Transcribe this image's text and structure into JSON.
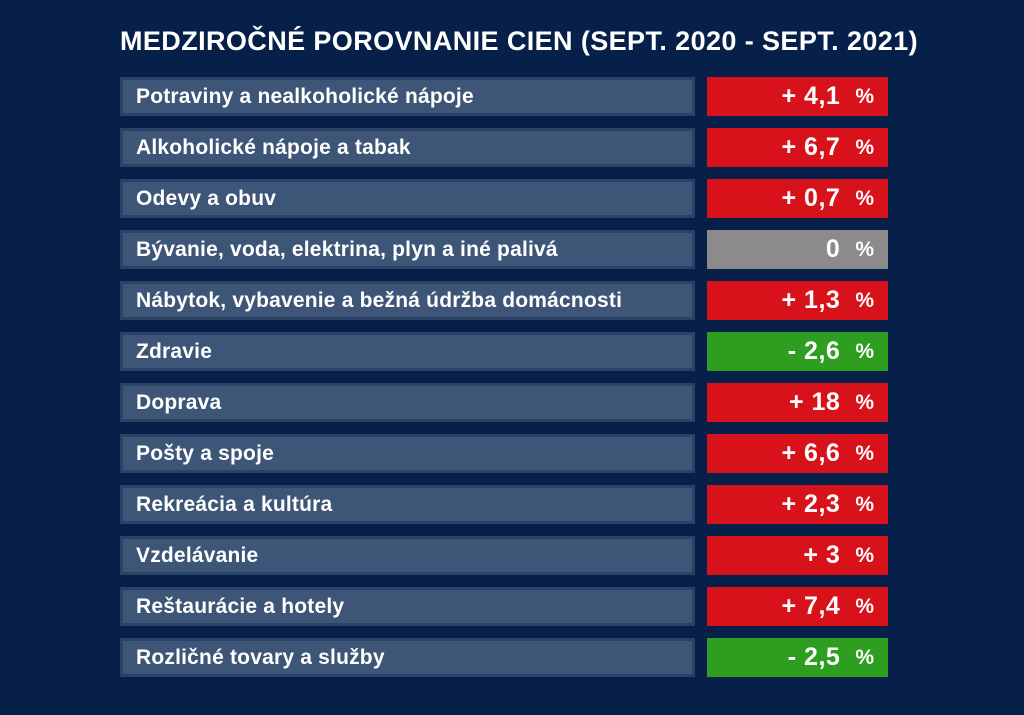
{
  "title": "MEDZIROČNÉ POROVNANIE CIEN (SEPT. 2020 - SEPT. 2021)",
  "percent_sign": "%",
  "colors": {
    "background": "#062049",
    "row_background": "#3d5677",
    "row_border": "#2c4166",
    "positive_badge": "#d8121a",
    "negative_badge": "#2d9e1f",
    "zero_badge": "#8b8b8b",
    "text": "#ffffff"
  },
  "rows": [
    {
      "label": "Potraviny a nealkoholické nápoje",
      "value": "+ 4,1",
      "status": "positive"
    },
    {
      "label": "Alkoholické nápoje a tabak",
      "value": "+ 6,7",
      "status": "positive"
    },
    {
      "label": "Odevy a obuv",
      "value": "+ 0,7",
      "status": "positive"
    },
    {
      "label": "Bývanie, voda, elektrina, plyn a iné palivá",
      "value": "0",
      "status": "zero"
    },
    {
      "label": "Nábytok, vybavenie a bežná údržba domácnosti",
      "value": "+ 1,3",
      "status": "positive"
    },
    {
      "label": "Zdravie",
      "value": "- 2,6",
      "status": "negative"
    },
    {
      "label": "Doprava",
      "value": "+ 18",
      "status": "positive"
    },
    {
      "label": "Pošty a spoje",
      "value": "+ 6,6",
      "status": "positive"
    },
    {
      "label": "Rekreácia a kultúra",
      "value": "+ 2,3",
      "status": "positive"
    },
    {
      "label": "Vzdelávanie",
      "value": "+ 3",
      "status": "positive"
    },
    {
      "label": "Reštaurácie a hotely",
      "value": "+ 7,4",
      "status": "positive"
    },
    {
      "label": "Rozličné tovary a služby",
      "value": "- 2,5",
      "status": "negative"
    }
  ],
  "chart_data": {
    "type": "table",
    "title": "MEDZIROČNÉ POROVNANIE CIEN (SEPT. 2020 - SEPT. 2021)",
    "categories": [
      "Potraviny a nealkoholické nápoje",
      "Alkoholické nápoje a tabak",
      "Odevy a obuv",
      "Bývanie, voda, elektrina, plyn a iné palivá",
      "Nábytok, vybavenie a bežná údržba domácnosti",
      "Zdravie",
      "Doprava",
      "Pošty a spoje",
      "Rekreácia a kultúra",
      "Vzdelávanie",
      "Reštaurácie a hotely",
      "Rozličné tovary a služby"
    ],
    "values": [
      4.1,
      6.7,
      0.7,
      0,
      1.3,
      -2.6,
      18,
      6.6,
      2.3,
      3,
      7.4,
      -2.5
    ],
    "value_labels": [
      "+ 4,1 %",
      "+ 6,7 %",
      "+ 0,7 %",
      "0 %",
      "+ 1,3 %",
      "- 2,6 %",
      "+ 18 %",
      "+ 6,6 %",
      "+ 2,3 %",
      "+ 3 %",
      "+ 7,4 %",
      "- 2,5 %"
    ],
    "unit": "%",
    "legend_position": "none",
    "color_coding": {
      "positive": "#d8121a",
      "negative": "#2d9e1f",
      "zero": "#8b8b8b"
    }
  }
}
